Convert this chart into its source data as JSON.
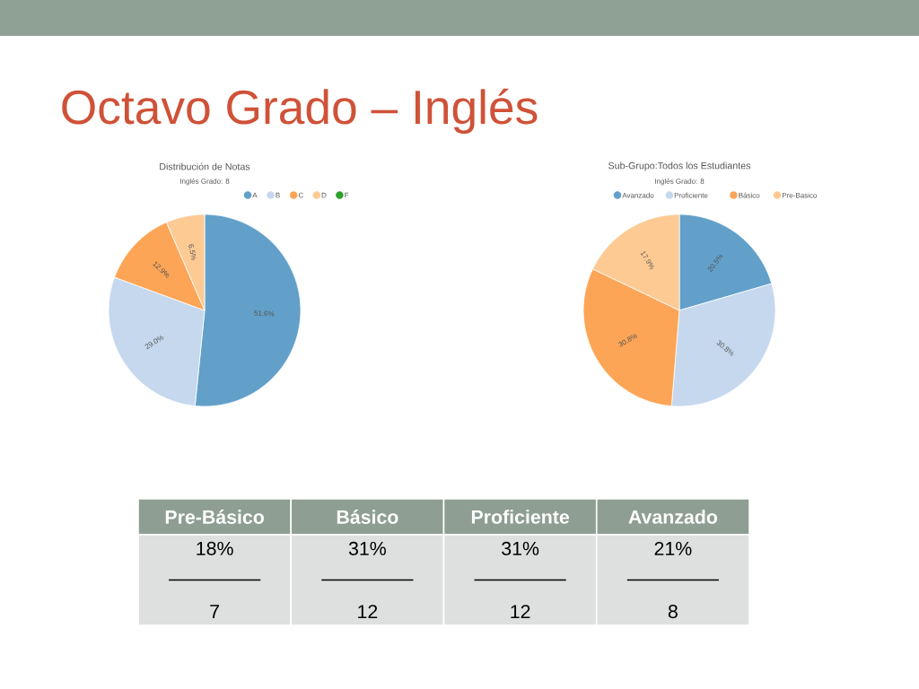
{
  "chart_data": [
    {
      "type": "pie",
      "title": "Distribución de Notas",
      "subtitle": "Inglés Grado: 8",
      "annotations": [
        "Octavo Grado – Inglés"
      ],
      "legend": "top right",
      "categories": [
        "A",
        "B",
        "C",
        "D",
        "F"
      ],
      "values": [
        51.6,
        29.0,
        12.9,
        6.5,
        0
      ],
      "value_labels": [
        "51.6%",
        "29.0%",
        "12.9%",
        "6.5%",
        null
      ],
      "colors": [
        "#62a0ca",
        "#c5d8ee",
        "#fda556",
        "#fdca93",
        "#2ca02c"
      ]
    },
    {
      "type": "pie",
      "title": "Sub-Grupo:Todos los Estudiantes",
      "subtitle": "Inglés Grado: 8",
      "legend": "top right",
      "categories": [
        "Avanzado",
        "Proficiente",
        "Básico",
        "Pre-Basico"
      ],
      "values": [
        20.5,
        30.8,
        30.8,
        17.9
      ],
      "value_labels": [
        "20.5%",
        "30.8%",
        "30.8%",
        "17.9%"
      ],
      "colors": [
        "#62a0ca",
        "#c5d8ee",
        "#fda556",
        "#fdca93"
      ]
    },
    {
      "type": "other",
      "categories": [
        "Pre-Básico",
        "Básico",
        "Proficiente",
        "Avanzado"
      ],
      "annotations": [
        "18%",
        "31%",
        "31%",
        "21%",
        "7",
        "12",
        "12",
        "8"
      ]
    }
  ]
}
